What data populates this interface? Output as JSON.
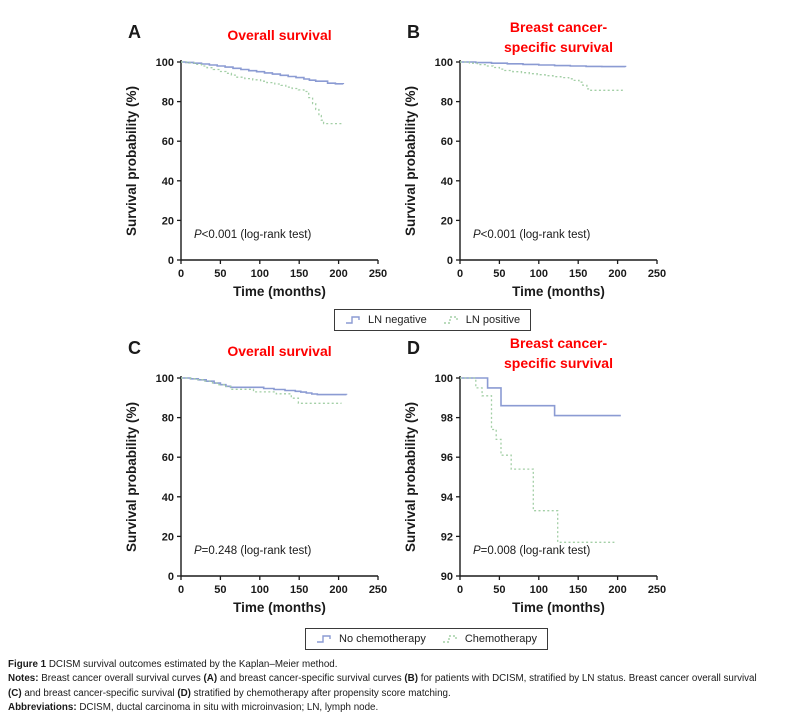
{
  "colors": {
    "title_red": "#fe0000",
    "blue": "#8b9bd3",
    "green": "#a3cfa6",
    "axis": "#1a1a1a",
    "text": "#1a1a1a",
    "legend_border": "#3a3a3a"
  },
  "chart_data": [
    {
      "type": "line",
      "panel_letter": "A",
      "title_lines": [
        "Overall survival"
      ],
      "xlabel": "Time (months)",
      "ylabel": "Survival probability (%)",
      "xlim": [
        0,
        250
      ],
      "ylim": [
        0,
        100
      ],
      "xticks": [
        0,
        50,
        100,
        150,
        200,
        250
      ],
      "yticks": [
        0,
        20,
        40,
        60,
        80,
        100
      ],
      "grid": false,
      "legend_position": "shared-below",
      "annotation": {
        "prefix": "P",
        "rest": "<0.001 (log-rank test)"
      },
      "series": [
        {
          "name": "LN negative",
          "color_key": "blue",
          "style": "solid",
          "points": [
            [
              0,
              100
            ],
            [
              6,
              99.8
            ],
            [
              16,
              99.4
            ],
            [
              26,
              99
            ],
            [
              36,
              98.5
            ],
            [
              46,
              98
            ],
            [
              56,
              97.4
            ],
            [
              66,
              96.8
            ],
            [
              76,
              96.2
            ],
            [
              86,
              95.6
            ],
            [
              96,
              95.1
            ],
            [
              106,
              94.5
            ],
            [
              116,
              93.9
            ],
            [
              126,
              93.3
            ],
            [
              136,
              92.7
            ],
            [
              146,
              92.1
            ],
            [
              156,
              91.4
            ],
            [
              163,
              90.8
            ],
            [
              171,
              90.3
            ],
            [
              186,
              89.3
            ],
            [
              196,
              89
            ],
            [
              206,
              88.9
            ]
          ]
        },
        {
          "name": "LN positive",
          "color_key": "green",
          "style": "dotted",
          "points": [
            [
              0,
              100
            ],
            [
              10,
              99.5
            ],
            [
              18,
              98.8
            ],
            [
              26,
              98
            ],
            [
              33,
              97.1
            ],
            [
              41,
              96.2
            ],
            [
              49,
              95.2
            ],
            [
              57,
              94.3
            ],
            [
              64,
              93.4
            ],
            [
              71,
              92.3
            ],
            [
              81,
              91.6
            ],
            [
              91,
              91
            ],
            [
              101,
              90.3
            ],
            [
              109,
              89.6
            ],
            [
              119,
              88.9
            ],
            [
              127,
              88.2
            ],
            [
              133,
              87.3
            ],
            [
              141,
              86.6
            ],
            [
              149,
              85.9
            ],
            [
              156,
              85.1
            ],
            [
              162,
              82
            ],
            [
              167,
              79
            ],
            [
              171,
              76
            ],
            [
              175,
              73
            ],
            [
              178,
              70.6
            ],
            [
              181,
              68.9
            ],
            [
              206,
              68.9
            ]
          ]
        }
      ]
    },
    {
      "type": "line",
      "panel_letter": "B",
      "title_lines": [
        "Breast cancer-",
        "specific survival"
      ],
      "xlabel": "Time (months)",
      "ylabel": "Survival probability (%)",
      "xlim": [
        0,
        250
      ],
      "ylim": [
        0,
        100
      ],
      "xticks": [
        0,
        50,
        100,
        150,
        200,
        250
      ],
      "yticks": [
        0,
        20,
        40,
        60,
        80,
        100
      ],
      "grid": false,
      "legend_position": "shared-below",
      "annotation": {
        "prefix": "P",
        "rest": "<0.001 (log-rank test)"
      },
      "series": [
        {
          "name": "LN negative",
          "color_key": "blue",
          "style": "solid",
          "points": [
            [
              0,
              100
            ],
            [
              20,
              99.7
            ],
            [
              40,
              99.4
            ],
            [
              60,
              99.1
            ],
            [
              80,
              98.8
            ],
            [
              100,
              98.5
            ],
            [
              120,
              98.2
            ],
            [
              140,
              98
            ],
            [
              160,
              97.8
            ],
            [
              180,
              97.7
            ],
            [
              210,
              97.5
            ]
          ]
        },
        {
          "name": "LN positive",
          "color_key": "green",
          "style": "dotted",
          "points": [
            [
              0,
              100
            ],
            [
              12,
              99.4
            ],
            [
              22,
              98.7
            ],
            [
              32,
              98
            ],
            [
              42,
              97.2
            ],
            [
              50,
              96.4
            ],
            [
              57,
              95.7
            ],
            [
              67,
              95.1
            ],
            [
              78,
              94.6
            ],
            [
              88,
              94.1
            ],
            [
              98,
              93.6
            ],
            [
              108,
              93.1
            ],
            [
              118,
              92.6
            ],
            [
              128,
              92.1
            ],
            [
              138,
              91.5
            ],
            [
              145,
              90.7
            ],
            [
              151,
              89.8
            ],
            [
              156,
              88.2
            ],
            [
              161,
              86.4
            ],
            [
              166,
              85.7
            ],
            [
              206,
              85.5
            ]
          ]
        }
      ]
    },
    {
      "type": "line",
      "panel_letter": "C",
      "title_lines": [
        "Overall survival"
      ],
      "xlabel": "Time (months)",
      "ylabel": "Survival probability (%)",
      "xlim": [
        0,
        250
      ],
      "ylim": [
        0,
        100
      ],
      "xticks": [
        0,
        50,
        100,
        150,
        200,
        250
      ],
      "yticks": [
        0,
        20,
        40,
        60,
        80,
        100
      ],
      "grid": false,
      "legend_position": "shared-below",
      "annotation": {
        "prefix": "P",
        "rest": "=0.248 (log-rank test)"
      },
      "series": [
        {
          "name": "No chemotherapy",
          "color_key": "blue",
          "style": "solid",
          "points": [
            [
              0,
              100
            ],
            [
              12,
              99.6
            ],
            [
              22,
              99.1
            ],
            [
              32,
              98.4
            ],
            [
              42,
              97.4
            ],
            [
              50,
              96.6
            ],
            [
              57,
              95.8
            ],
            [
              63,
              95.3
            ],
            [
              105,
              94.7
            ],
            [
              118,
              94.2
            ],
            [
              132,
              93.7
            ],
            [
              145,
              93.3
            ],
            [
              152,
              92.9
            ],
            [
              159,
              92.4
            ],
            [
              166,
              91.9
            ],
            [
              173,
              91.6
            ],
            [
              210,
              91.5
            ]
          ]
        },
        {
          "name": "Chemotherapy",
          "color_key": "green",
          "style": "dotted",
          "points": [
            [
              0,
              100
            ],
            [
              12,
              99.7
            ],
            [
              20,
              99.2
            ],
            [
              30,
              98.5
            ],
            [
              40,
              97.5
            ],
            [
              48,
              96.6
            ],
            [
              55,
              95.7
            ],
            [
              63,
              94.3
            ],
            [
              92,
              93
            ],
            [
              121,
              92
            ],
            [
              140,
              89.8
            ],
            [
              149,
              87.2
            ],
            [
              203,
              87
            ]
          ]
        }
      ]
    },
    {
      "type": "line",
      "panel_letter": "D",
      "title_lines": [
        "Breast cancer-",
        "specific survival"
      ],
      "xlabel": "Time (months)",
      "ylabel": "Survival probability (%)",
      "xlim": [
        0,
        250
      ],
      "ylim": [
        90,
        100
      ],
      "xticks": [
        0,
        50,
        100,
        150,
        200,
        250
      ],
      "yticks": [
        90,
        92,
        94,
        96,
        98,
        100
      ],
      "grid": false,
      "legend_position": "shared-below",
      "annotation": {
        "prefix": "P",
        "rest": "=0.008 (log-rank test)"
      },
      "series": [
        {
          "name": "No chemotherapy",
          "color_key": "blue",
          "style": "solid",
          "points": [
            [
              0,
              100
            ],
            [
              35,
              99.5
            ],
            [
              52,
              98.6
            ],
            [
              120,
              98.1
            ],
            [
              204,
              98.1
            ]
          ]
        },
        {
          "name": "Chemotherapy",
          "color_key": "green",
          "style": "dotted",
          "points": [
            [
              0,
              100
            ],
            [
              20,
              99.5
            ],
            [
              28,
              99.1
            ],
            [
              40,
              97.4
            ],
            [
              46,
              96.9
            ],
            [
              52,
              96.1
            ],
            [
              65,
              95.4
            ],
            [
              93,
              93.3
            ],
            [
              124,
              91.7
            ],
            [
              196,
              91.7
            ]
          ]
        }
      ]
    }
  ],
  "legends": [
    {
      "id": "ln-status",
      "items": [
        {
          "label": "LN negative",
          "color_key": "blue",
          "dashed": false
        },
        {
          "label": "LN positive",
          "color_key": "green",
          "dashed": true
        }
      ]
    },
    {
      "id": "chemotherapy",
      "items": [
        {
          "label": "No chemotherapy",
          "color_key": "blue",
          "dashed": false
        },
        {
          "label": "Chemotherapy",
          "color_key": "green",
          "dashed": true
        }
      ]
    }
  ],
  "caption": {
    "lines": [
      [
        {
          "t": "Figure 1 ",
          "b": true
        },
        {
          "t": "DCISM survival outcomes estimated by the Kaplan–Meier method.",
          "b": false
        }
      ],
      [
        {
          "t": "Notes: ",
          "b": true
        },
        {
          "t": "Breast cancer overall survival curves ",
          "b": false
        },
        {
          "t": "(A)",
          "b": true
        },
        {
          "t": " and breast cancer-specific survival curves ",
          "b": false
        },
        {
          "t": "(B)",
          "b": true
        },
        {
          "t": " for patients with DCISM, stratified by LN status. Breast cancer overall survival",
          "b": false
        }
      ],
      [
        {
          "t": "(C)",
          "b": true
        },
        {
          "t": " and breast cancer-specific survival ",
          "b": false
        },
        {
          "t": "(D)",
          "b": true
        },
        {
          "t": " stratified by chemotherapy after propensity score matching.",
          "b": false
        }
      ],
      [
        {
          "t": "Abbreviations: ",
          "b": true
        },
        {
          "t": "DCISM, ductal carcinoma in situ with microinvasion; LN, lymph node.",
          "b": false
        }
      ]
    ]
  }
}
